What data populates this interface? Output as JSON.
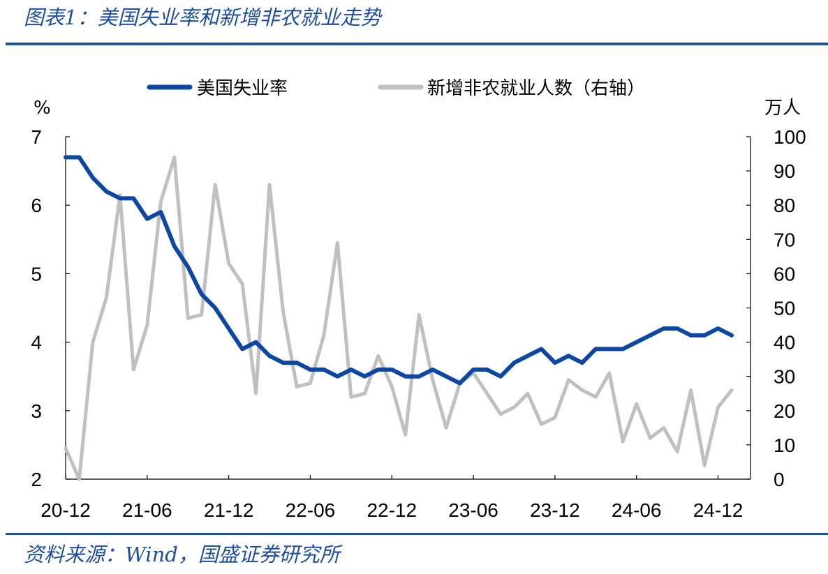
{
  "header": {
    "title": "图表1：美国失业率和新增非农就业走势"
  },
  "footer": {
    "source": "资料来源：Wind，国盛证券研究所"
  },
  "colors": {
    "unemployment": "#0d47a1",
    "payrolls": "#c0c0c0",
    "brand": "#1f4e9c"
  },
  "chart_data": {
    "type": "line",
    "x_tick_labels": [
      "20-12",
      "21-06",
      "21-12",
      "22-06",
      "22-12",
      "23-06",
      "23-12",
      "24-06",
      "24-12"
    ],
    "y_left": {
      "unit": "%",
      "ylim": [
        2,
        7
      ],
      "ticks": [
        "2",
        "3",
        "4",
        "5",
        "6",
        "7"
      ]
    },
    "y_right": {
      "unit": "万人",
      "ylim": [
        0,
        100
      ],
      "ticks": [
        "0",
        "10",
        "20",
        "30",
        "40",
        "50",
        "60",
        "70",
        "80",
        "90",
        "100"
      ]
    },
    "grid": false,
    "legend_position": "top",
    "series": [
      {
        "name": "美国失业率",
        "axis": "left",
        "values": [
          6.7,
          6.7,
          6.4,
          6.2,
          6.1,
          6.1,
          5.8,
          5.9,
          5.4,
          5.1,
          4.7,
          4.5,
          4.2,
          3.9,
          4.0,
          3.8,
          3.7,
          3.7,
          3.6,
          3.6,
          3.5,
          3.6,
          3.5,
          3.6,
          3.6,
          3.5,
          3.5,
          3.6,
          3.5,
          3.4,
          3.6,
          3.6,
          3.5,
          3.7,
          3.8,
          3.9,
          3.7,
          3.8,
          3.7,
          3.9,
          3.9,
          3.9,
          4.0,
          4.1,
          4.2,
          4.2,
          4.1,
          4.1,
          4.2,
          4.1
        ]
      },
      {
        "name": "新增非农就业人数（右轴）",
        "axis": "right",
        "values": [
          9,
          0,
          40,
          53,
          83,
          32,
          45,
          81,
          94,
          47,
          48,
          86,
          63,
          57,
          25,
          86,
          49,
          27,
          28,
          42,
          69,
          24,
          25,
          36,
          27,
          13,
          48,
          29,
          15,
          28,
          31,
          25,
          19,
          21,
          25,
          16,
          18,
          29,
          26,
          24,
          31,
          11,
          22,
          12,
          15,
          8,
          26,
          4,
          21,
          26
        ]
      }
    ]
  }
}
